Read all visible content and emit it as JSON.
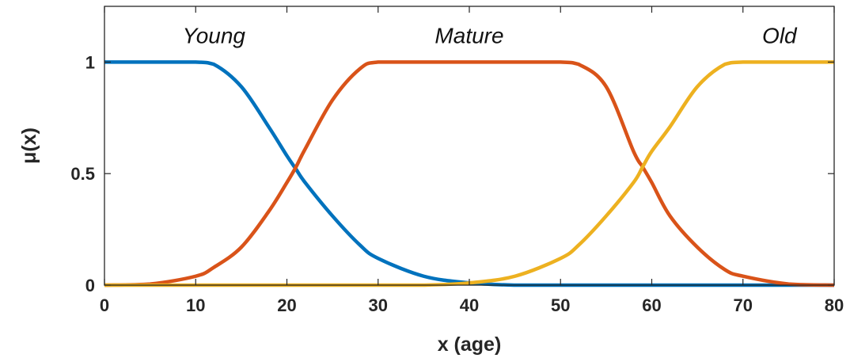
{
  "chart_data": {
    "type": "line",
    "xlabel": "x (age)",
    "ylabel": "μ(x)",
    "xlim": [
      0,
      80
    ],
    "ylim": [
      0,
      1.25
    ],
    "xticks": [
      0,
      10,
      20,
      30,
      40,
      50,
      60,
      70,
      80
    ],
    "yticks": [
      0,
      0.5,
      1
    ],
    "ytick_labels": [
      "0",
      "0.5",
      "1"
    ],
    "grid": false,
    "x": [
      0,
      5,
      10,
      12,
      15,
      18,
      20,
      21,
      22,
      25,
      28,
      30,
      35,
      40,
      45,
      50,
      52,
      55,
      58,
      59,
      60,
      62,
      65,
      68,
      70,
      75,
      80
    ],
    "series": [
      {
        "name": "Young",
        "color": "#0072BD",
        "values": [
          1,
          1,
          1,
          0.99,
          0.89,
          0.71,
          0.58,
          0.52,
          0.46,
          0.31,
          0.18,
          0.12,
          0.04,
          0.01,
          0,
          0,
          0,
          0,
          0,
          0,
          0,
          0,
          0,
          0,
          0,
          0,
          0
        ]
      },
      {
        "name": "Mature",
        "color": "#D95319",
        "values": [
          0,
          0.005,
          0.04,
          0.08,
          0.17,
          0.33,
          0.46,
          0.53,
          0.61,
          0.83,
          0.97,
          1,
          1,
          1,
          1,
          1,
          0.99,
          0.89,
          0.6,
          0.53,
          0.46,
          0.31,
          0.17,
          0.07,
          0.04,
          0.005,
          0
        ]
      },
      {
        "name": "Old",
        "color": "#EDB120",
        "values": [
          0,
          0,
          0,
          0,
          0,
          0,
          0,
          0,
          0,
          0,
          0,
          0,
          0,
          0.01,
          0.04,
          0.12,
          0.18,
          0.31,
          0.46,
          0.53,
          0.6,
          0.71,
          0.89,
          0.99,
          1,
          1,
          1
        ]
      }
    ],
    "annotations": [
      {
        "text": "Young",
        "x": 12,
        "y": 1.12
      },
      {
        "text": "Mature",
        "x": 40,
        "y": 1.12
      },
      {
        "text": "Old",
        "x": 74,
        "y": 1.12
      }
    ]
  }
}
